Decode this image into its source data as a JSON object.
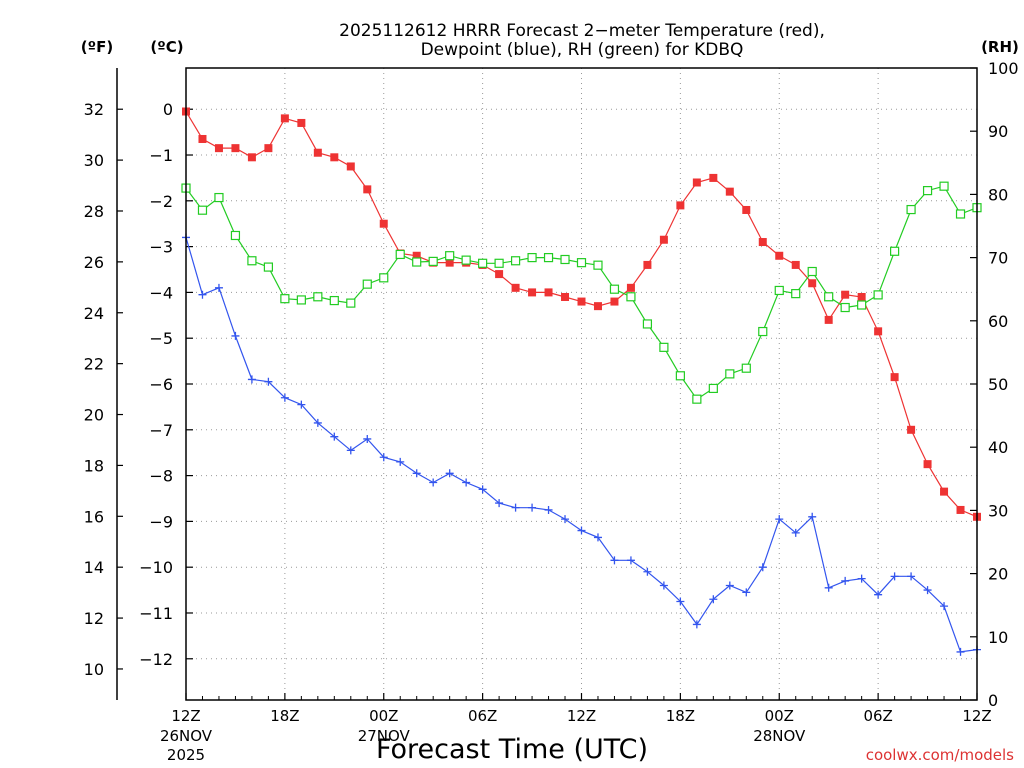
{
  "chart_data": {
    "type": "line",
    "title_line1": "2025112612 HRRR Forecast 2−meter Temperature (red),",
    "title_line2": "Dewpoint (blue), RH (green) for KDBQ",
    "xlabel": "Forecast Time (UTC)",
    "watermark": "coolwx.com/models",
    "unit_labels": {
      "fahrenheit": "(ºF)",
      "celsius": "(ºC)",
      "rh": "(RH)"
    },
    "x_range_hours": [
      0,
      48
    ],
    "x_ticks": [
      {
        "h": 0,
        "label": "12Z",
        "date": "26NOV",
        "year": "2025"
      },
      {
        "h": 6,
        "label": "18Z"
      },
      {
        "h": 12,
        "label": "00Z",
        "date": "27NOV"
      },
      {
        "h": 18,
        "label": "06Z"
      },
      {
        "h": 24,
        "label": "12Z"
      },
      {
        "h": 30,
        "label": "18Z"
      },
      {
        "h": 36,
        "label": "00Z",
        "date": "28NOV"
      },
      {
        "h": 42,
        "label": "06Z"
      },
      {
        "h": 48,
        "label": "12Z"
      }
    ],
    "celsius_range": [
      -12.9,
      0.9
    ],
    "celsius_ticks": [
      0,
      -1,
      -2,
      -3,
      -4,
      -5,
      -6,
      -7,
      -8,
      -9,
      -10,
      -11,
      -12
    ],
    "celsius_tick_labels": [
      "0",
      "−1",
      "−2",
      "−3",
      "−4",
      "−5",
      "−6",
      "−7",
      "−8",
      "−9",
      "−10",
      "−11",
      "−12"
    ],
    "fahrenheit_ticks": [
      32,
      30,
      28,
      26,
      24,
      22,
      20,
      18,
      16,
      14,
      12,
      10
    ],
    "rh_range": [
      0,
      100
    ],
    "rh_ticks": [
      0,
      10,
      20,
      30,
      40,
      50,
      60,
      70,
      80,
      90,
      100
    ],
    "series": [
      {
        "name": "Temperature",
        "unit": "C",
        "color": "#ee3333",
        "marker": "filled-square",
        "values": [
          -0.05,
          -0.65,
          -0.85,
          -0.85,
          -1.05,
          -0.85,
          -0.2,
          -0.3,
          -0.95,
          -1.05,
          -1.25,
          -1.75,
          -2.5,
          -3.15,
          -3.2,
          -3.35,
          -3.35,
          -3.35,
          -3.4,
          -3.6,
          -3.9,
          -4.0,
          -4.0,
          -4.1,
          -4.2,
          -4.3,
          -4.2,
          -3.9,
          -3.4,
          -2.85,
          -2.1,
          -1.6,
          -1.5,
          -1.8,
          -2.2,
          -2.9,
          -3.2,
          -3.4,
          -3.8,
          -4.6,
          -4.05,
          -4.1,
          -4.85,
          -5.85,
          -7.0,
          -7.75,
          -8.35,
          -8.75,
          -8.9
        ]
      },
      {
        "name": "Dewpoint",
        "unit": "C",
        "color": "#3355ee",
        "marker": "plus",
        "values": [
          -2.8,
          -4.05,
          -3.9,
          -4.95,
          -5.9,
          -5.95,
          -6.3,
          -6.45,
          -6.85,
          -7.15,
          -7.45,
          -7.2,
          -7.6,
          -7.7,
          -7.95,
          -8.15,
          -7.95,
          -8.15,
          -8.3,
          -8.6,
          -8.7,
          -8.7,
          -8.75,
          -8.95,
          -9.2,
          -9.35,
          -9.85,
          -9.85,
          -10.1,
          -10.4,
          -10.75,
          -11.25,
          -10.7,
          -10.4,
          -10.55,
          -10.0,
          -8.95,
          -9.25,
          -8.9,
          -10.45,
          -10.3,
          -10.25,
          -10.6,
          -10.2,
          -10.2,
          -10.5,
          -10.85,
          -11.85,
          -11.8
        ]
      },
      {
        "name": "RH",
        "unit": "%",
        "color": "#22cc22",
        "marker": "open-square",
        "values": [
          81,
          77.5,
          79.5,
          73.5,
          69.5,
          68.5,
          63.5,
          63.3,
          63.8,
          63.2,
          62.8,
          65.8,
          66.8,
          70.5,
          69.3,
          69.4,
          70.3,
          69.6,
          69.1,
          69.1,
          69.5,
          70.0,
          70.0,
          69.7,
          69.2,
          68.8,
          65.0,
          63.8,
          59.5,
          55.8,
          51.3,
          47.6,
          49.3,
          51.6,
          52.5,
          58.3,
          64.8,
          64.3,
          67.8,
          63.8,
          62.1,
          62.5,
          64.1,
          71.0,
          77.6,
          80.6,
          81.3,
          76.9,
          77.9
        ]
      }
    ]
  }
}
